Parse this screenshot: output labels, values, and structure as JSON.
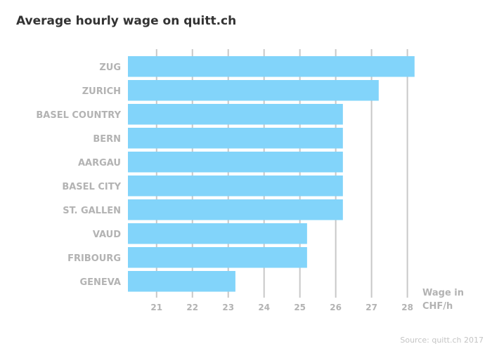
{
  "chart_data": {
    "type": "bar",
    "orientation": "horizontal",
    "title": "Average hourly wage on quitt.ch",
    "categories": [
      "ZUG",
      "ZURICH",
      "BASEL COUNTRY",
      "BERN",
      "AARGAU",
      "BASEL CITY",
      "ST. GALLEN",
      "VAUD",
      "FRIBOURG",
      "GENEVA"
    ],
    "values": [
      28.2,
      27.2,
      26.2,
      26.2,
      26.2,
      26.2,
      26.2,
      25.2,
      25.2,
      23.2
    ],
    "xlim": [
      20.2,
      28.4
    ],
    "xticks": [
      21,
      22,
      23,
      24,
      25,
      26,
      27,
      28
    ],
    "xlabel_lines": [
      "Wage in",
      "CHF/h"
    ],
    "grid": "vertical",
    "bar_color": "#82d4fa",
    "grid_color": "#c8c8c8",
    "source": "Source: quitt.ch 2017"
  }
}
